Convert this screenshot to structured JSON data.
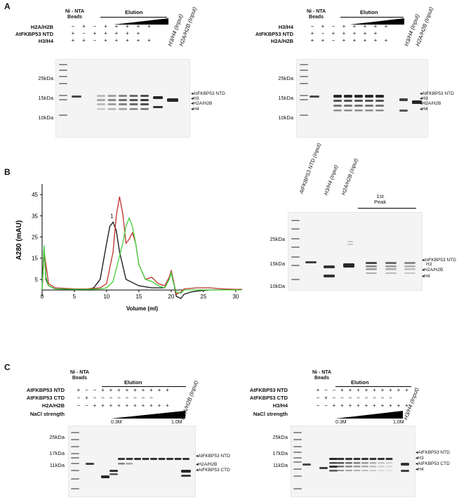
{
  "panelA": {
    "label": "A",
    "left": {
      "beads_label": "Ni - NTA\nBeads",
      "elution_label": "Elution",
      "rows": [
        "H2A/H2B",
        "AtFKBP53 NTD",
        "H3/H4"
      ],
      "lane_labels": [
        "H3/H4 (Input)",
        "H2A/H2B (Input)"
      ],
      "markers": [
        "25kDa",
        "15kDa",
        "10kDa"
      ],
      "bands": [
        "AtFKBP53 NTD",
        "H3",
        "H2A/H2B",
        "H4"
      ]
    },
    "right": {
      "beads_label": "Ni - NTA\nBeads",
      "elution_label": "Elution",
      "rows": [
        "H3/H4",
        "AtFKBP53 NTD",
        "H2A/H2B"
      ],
      "lane_labels": [
        "H3/H4 (Input)",
        "H2A/H2B (Input)"
      ],
      "markers": [
        "25kDa",
        "15kDa",
        "10kDa"
      ],
      "bands": [
        "AtFKBP53 NTD",
        "H3",
        "H2A/H2B",
        "H4"
      ]
    }
  },
  "panelB": {
    "label": "B",
    "chart_data": {
      "type": "line",
      "ylabel": "A280 (mAU)",
      "xlabel": "Volume (ml)",
      "xlim": [
        0,
        31
      ],
      "ylim": [
        -3,
        50
      ],
      "xticks": [
        0,
        5,
        10,
        15,
        20,
        25,
        30
      ],
      "yticks": [
        5,
        15,
        25,
        35,
        45
      ],
      "peak_annotation": "1",
      "series": [
        {
          "color": "#111111",
          "x": [
            0,
            0.3,
            0.6,
            1,
            2,
            5,
            7,
            8,
            9,
            10,
            10.5,
            11,
            11.5,
            12,
            13,
            15,
            17,
            19,
            19.7,
            20,
            20.3,
            20.8,
            21.5,
            22,
            23,
            24,
            26,
            28,
            30,
            31
          ],
          "y": [
            0,
            20,
            5,
            2,
            0.5,
            0.3,
            0.3,
            1,
            5,
            22,
            30,
            32,
            28,
            18,
            5,
            2,
            1,
            1,
            5,
            9,
            5,
            -3,
            -4,
            -2,
            -1,
            -0.5,
            0,
            0,
            0,
            0
          ]
        },
        {
          "color": "#c0312a",
          "x": [
            0,
            0.3,
            0.6,
            1,
            2,
            5,
            7,
            9,
            10,
            11,
            11.5,
            12,
            12.5,
            13,
            13.5,
            14,
            14.5,
            15,
            16,
            17,
            18,
            19,
            19.7,
            20,
            20.3,
            20.8,
            21.5,
            22,
            24,
            26,
            28,
            30,
            31
          ],
          "y": [
            0,
            18,
            12,
            3,
            1,
            0.5,
            0.5,
            1,
            3,
            18,
            35,
            44,
            36,
            22,
            24,
            27,
            22,
            12,
            5,
            6,
            3,
            2,
            6,
            9,
            5,
            -2,
            -1,
            0.5,
            1,
            1,
            0.5,
            0.3,
            0.3
          ]
        },
        {
          "color": "#3fd23a",
          "x": [
            0,
            0.3,
            0.6,
            1,
            2,
            5,
            7,
            9,
            10,
            11,
            11.5,
            12,
            12.5,
            13,
            13.5,
            14,
            14.5,
            15,
            16,
            17,
            18,
            19,
            19.7,
            20,
            20.3,
            20.8,
            21.5,
            22,
            24,
            26,
            28,
            30,
            31
          ],
          "y": [
            0,
            21,
            6,
            2,
            0.5,
            0.3,
            0.3,
            0.5,
            1,
            4,
            10,
            16,
            22,
            30,
            34,
            30,
            22,
            12,
            5,
            4,
            2,
            1,
            5,
            8,
            4,
            -1,
            -1.5,
            0,
            0,
            0,
            0,
            0,
            0
          ]
        }
      ]
    },
    "gel": {
      "lane_labels": [
        "AtFKBP53 NTD (Input)",
        "H3/H4 (Input)",
        "H2A/H2B (Input)"
      ],
      "peak_label": "1st\nPeak",
      "markers": [
        "25kDa",
        "15kDa",
        "10kDa"
      ],
      "bands": [
        "AtFKBP53 NTD",
        "H3",
        "H2A/H2B",
        "H4"
      ]
    }
  },
  "panelC": {
    "label": "C",
    "left": {
      "beads_label": "Ni - NTA\nBeads",
      "elution_label": "Elution",
      "rows": [
        "AtFKBP53 NTD",
        "AtFKBP53 CTD",
        "H2A/H2B",
        "NaCl strength"
      ],
      "salt_low": "0.3M",
      "salt_high": "1.0M",
      "lane_label": "H2A/H2B (Input)",
      "markers": [
        "25kDa",
        "17kDa",
        "11kDa"
      ],
      "bands": [
        "AtFKBP53 NTD",
        "H2A/H2B",
        "AtFKBP53 CTD"
      ]
    },
    "right": {
      "beads_label": "Ni - NTA\nBeads",
      "elution_label": "Elution",
      "rows": [
        "AtFKBP53 NTD",
        "AtFKBP53 CTD",
        "H3/H4",
        "NaCl strength"
      ],
      "salt_low": "0.3M",
      "salt_high": "1.0M",
      "lane_label": "H3/H4 (Input)",
      "markers": [
        "25kDa",
        "17kDa",
        "11kDa"
      ],
      "bands": [
        "AtFKBP53 NTD",
        "H3",
        "AtFKBP53 CTD",
        "H4"
      ]
    }
  },
  "signs": {
    "plus": "+",
    "minus": "−"
  }
}
